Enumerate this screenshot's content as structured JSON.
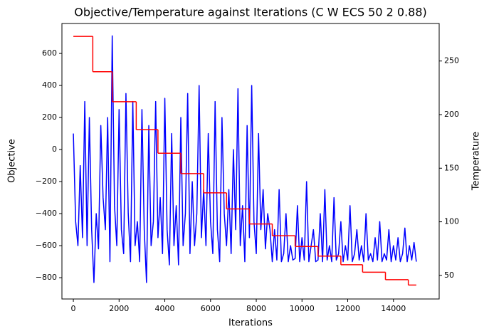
{
  "chart_data": {
    "type": "dual-line",
    "title": "Objective/Temperature against Iterations (C W ECS 50 2 0.88)",
    "x_label": "Iterations",
    "y_label": "Objective",
    "y2_label": "Temperature",
    "y_label_color": "#0000ff",
    "y2_label_color": "#ff0000",
    "xlim": [
      -500,
      16000
    ],
    "xticks": [
      0,
      2000,
      4000,
      6000,
      8000,
      10000,
      12000,
      14000
    ],
    "ylim": [
      -933,
      787
    ],
    "yticks": [
      {
        "value": -800,
        "label": "−800"
      },
      {
        "value": -600,
        "label": "−600"
      },
      {
        "value": -400,
        "label": "−400"
      },
      {
        "value": -200,
        "label": "−200"
      },
      0,
      200,
      400,
      600
    ],
    "y2lim": [
      28,
      285
    ],
    "y2ticks": [
      50,
      100,
      150,
      200,
      250
    ],
    "grid": false,
    "series": [
      {
        "name": "Objective",
        "color": "#0000ff",
        "axis": "y",
        "drawstyle": "line",
        "x": [
          0,
          100,
          200,
          300,
          400,
          500,
          600,
          700,
          800,
          900,
          1000,
          1100,
          1200,
          1300,
          1400,
          1500,
          1600,
          1700,
          1800,
          1900,
          2000,
          2100,
          2200,
          2300,
          2400,
          2500,
          2600,
          2700,
          2800,
          2900,
          3000,
          3100,
          3200,
          3300,
          3400,
          3500,
          3600,
          3700,
          3800,
          3900,
          4000,
          4100,
          4200,
          4300,
          4400,
          4500,
          4600,
          4700,
          4800,
          4900,
          5000,
          5100,
          5200,
          5300,
          5400,
          5500,
          5600,
          5700,
          5800,
          5900,
          6000,
          6100,
          6200,
          6300,
          6400,
          6500,
          6600,
          6700,
          6800,
          6900,
          7000,
          7100,
          7200,
          7300,
          7400,
          7500,
          7600,
          7700,
          7800,
          7900,
          8000,
          8100,
          8200,
          8300,
          8400,
          8500,
          8600,
          8700,
          8800,
          8900,
          9000,
          9100,
          9200,
          9300,
          9400,
          9500,
          9600,
          9700,
          9800,
          9900,
          10000,
          10100,
          10200,
          10300,
          10400,
          10500,
          10600,
          10700,
          10800,
          10900,
          11000,
          11100,
          11200,
          11300,
          11400,
          11500,
          11600,
          11700,
          11800,
          11900,
          12000,
          12100,
          12200,
          12300,
          12400,
          12500,
          12600,
          12700,
          12800,
          12900,
          13000,
          13100,
          13200,
          13300,
          13400,
          13500,
          13600,
          13700,
          13800,
          13900,
          14000,
          14100,
          14200,
          14300,
          14400,
          14500,
          14600,
          14700,
          14800,
          14900,
          15000
        ],
        "values": [
          100,
          -450,
          -600,
          -100,
          -550,
          300,
          -600,
          200,
          -500,
          -830,
          -400,
          -620,
          150,
          -300,
          -500,
          200,
          -700,
          710,
          -350,
          -600,
          250,
          -500,
          -650,
          350,
          -400,
          -700,
          300,
          -600,
          -450,
          -700,
          250,
          -500,
          -830,
          150,
          -600,
          -450,
          300,
          -550,
          -300,
          -650,
          320,
          -500,
          -720,
          100,
          -600,
          -350,
          -720,
          200,
          -600,
          -400,
          350,
          -650,
          -200,
          -600,
          -400,
          400,
          -550,
          -250,
          -600,
          100,
          -450,
          -650,
          300,
          -500,
          -700,
          200,
          -400,
          -600,
          -250,
          -650,
          0,
          -500,
          380,
          -600,
          -350,
          -700,
          150,
          -550,
          400,
          -450,
          -650,
          100,
          -500,
          -250,
          -620,
          -400,
          -500,
          -700,
          -500,
          -690,
          -250,
          -700,
          -650,
          -400,
          -700,
          -600,
          -690,
          -680,
          -350,
          -700,
          -550,
          -690,
          -200,
          -700,
          -600,
          -500,
          -700,
          -690,
          -400,
          -700,
          -250,
          -690,
          -600,
          -700,
          -300,
          -690,
          -650,
          -450,
          -700,
          -600,
          -690,
          -350,
          -700,
          -650,
          -500,
          -690,
          -600,
          -700,
          -400,
          -690,
          -650,
          -700,
          -550,
          -690,
          -450,
          -700,
          -650,
          -690,
          -500,
          -700,
          -600,
          -690,
          -550,
          -700,
          -650,
          -490,
          -700,
          -600,
          -690,
          -580,
          -700
        ]
      },
      {
        "name": "Temperature",
        "color": "#ff0000",
        "axis": "y2",
        "drawstyle": "steps-post",
        "x": [
          0,
          850,
          1700,
          2750,
          3700,
          4700,
          5700,
          6700,
          7700,
          8700,
          9700,
          10700,
          11700,
          12650,
          13650,
          14650,
          15000
        ],
        "values": [
          273,
          240,
          212,
          186,
          164,
          145,
          127,
          112,
          98,
          87,
          77,
          68,
          60,
          53,
          46,
          41,
          41
        ]
      }
    ]
  }
}
